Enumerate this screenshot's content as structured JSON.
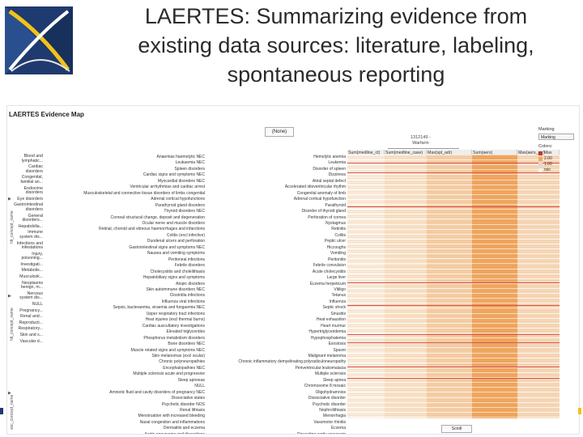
{
  "slide": {
    "title_lines": [
      "LAERTES: Summarizing evidence from",
      "existing data sources:  literature, labeling,",
      "spontaneous reporting"
    ]
  },
  "app": {
    "panel_title": "LAERTES Evidence Map",
    "concept_select": "(None)",
    "drug_label": "1312149 -",
    "drug_name": "Warfarin",
    "bottom_select": "Scroll",
    "axis_labels": [
      "hlt_concept_name",
      "hlt_concept_name",
      "soc_concept_name"
    ]
  },
  "legend": {
    "title": "Marking",
    "select_value": "Marking",
    "colors_title": "Colors:",
    "items": [
      {
        "label": "Max",
        "color": "#c0392b"
      },
      {
        "label": "2.00",
        "color": "#f0a862"
      },
      {
        "label": "1.00",
        "color": "#d9d9d9"
      },
      {
        "label": "min",
        "color": "#f5f5f5"
      }
    ]
  },
  "columns": [
    "Sum(medline_ct)",
    "Sum(medline_case)",
    "Max(spl_adr)",
    "Sum(aers)",
    "Max(aers_prr)"
  ],
  "categories": [
    "Blood and lymphatic...",
    "Cardiac disorders",
    "Congenital, familial an...",
    "Endocrine disorders",
    "Eye disorders",
    "Gastrointestinal disorders",
    "General disorders...",
    "Hepatobilia...",
    "Immune system dis...",
    "Infections and infestations",
    "Injury, poisoning...",
    "Investigati...",
    "Metabolis...",
    "Musculosk...",
    "Neoplasms benign, m...",
    "Nervous system dis...",
    "NULL",
    "Pregnancy...",
    "Renal and...",
    "Reproducti...",
    "Respiratory...",
    "Skin and s...",
    "Vascular d..."
  ],
  "soc_terms": [
    "Anaemias haemolytic NEC",
    "Leukaemia NEC",
    "Spleen disorders",
    "Cardiac signs and symptoms NEC",
    "Myocardial disorders NEC",
    "Ventricular arrhythmias and cardiac arrest",
    "Musculoskeletal and connective tissue disorders of limbs congenital",
    "Adrenal cortical hypofunctions",
    "Parathyroid gland disorders",
    "Thyroid disorders NEC",
    "Corneal structural change, deposit and degeneration",
    "Ocular nerve and muscle disorders",
    "Retinal, choroid and vitreous haemorrhages and infarctions",
    "Colitis (excl infective)",
    "Duodenal ulcers and perforation",
    "Gastrointestinal signs and symptoms NEC",
    "Nausea and vomiting symptoms",
    "Peritoneal infections",
    "Febrile disorders",
    "Cholecystitis and cholelithiasis",
    "Hepatobiliary signs and symptoms",
    "Atopic disorders",
    "Skin autoimmune disorders NEC",
    "Clostridia infections",
    "Influenza viral infections",
    "Sepsis, bacteraemia, viraemia and fungaemia NEC",
    "Upper respiratory tract infections",
    "Heat injuries (excl thermal burns)",
    "Cardiac auscultatory investigations",
    "Elevated triglycerides",
    "Phosphorus metabolism disorders",
    "Bone disorders NEC",
    "Muscle related signs and symptoms NEC",
    "Skin melanomas (excl ocular)",
    "Chronic polyneuropathies",
    "Encephalopathies NEC",
    "Multiple sclerosis acute and progressive",
    "Sleep apnoeas",
    "NULL",
    "Amniotic fluid and cavity disorders of pregnancy NEC",
    "Dissociative states",
    "Psychotic disorder NOS",
    "Renal lithiasis",
    "Menstruation with increased bleeding",
    "Nasal congestion and inflammations",
    "Dermatitis and eczema",
    "Aortic aneurysms and dissections"
  ],
  "hlt_terms": [
    "Hemolytic anemia",
    "Leukemia",
    "Disorder of spleen",
    "Dizziness",
    "Atrial septal defect",
    "Accelerated idioventricular rhythm",
    "Congenital anomaly of limb",
    "Adrenal cortical hypofunction",
    "Parathyroid",
    "Disorder of thyroid gland",
    "Perforation of cornea",
    "Nystagmus",
    "Retinitis",
    "Colitis",
    "Peptic ulcer",
    "Hiccoughs",
    "Vomiting",
    "Peritonitis",
    "Febrile convulsion",
    "Acute cholecystitis",
    "Large liver",
    "Eczema herpeticum",
    "Vitiligo",
    "Tetanus",
    "Influenza",
    "Septic shock",
    "Sinusitis",
    "Heat exhaustion",
    "Heart murmur",
    "Hypertriglyceridemia",
    "Hypophosphatemia",
    "Exostosis",
    "Spasm",
    "Malignant melanoma",
    "Chronic inflammatory demyelinating polyradiculoneuropathy",
    "Periventricular leukomalacia",
    "Multiple sclerosis",
    "Sleep apnea",
    "Chromosome 8 mosaic",
    "Oligohydramnios",
    "Dissociative disorder",
    "Psychotic disorder",
    "Nephrolithiasis",
    "Menorrhagia",
    "Vasomotor rhinitis",
    "Eczema",
    "Dissecting aortic aneurysm"
  ]
}
